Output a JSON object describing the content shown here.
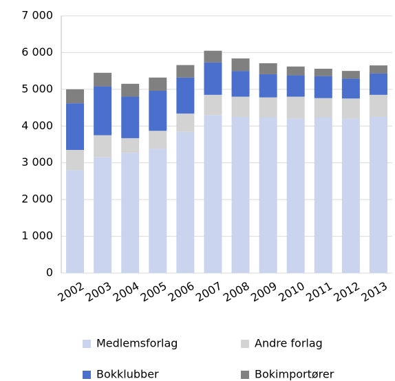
{
  "chart_data": {
    "type": "stacked_bar",
    "categories": [
      "2002",
      "2003",
      "2004",
      "2005",
      "2006",
      "2007",
      "2008",
      "2009",
      "2010",
      "2011",
      "2012",
      "2013"
    ],
    "series": [
      {
        "name": "Medlemsforlag",
        "color": "#cad4ef",
        "values": [
          2800,
          3150,
          3270,
          3380,
          3840,
          4300,
          4250,
          4230,
          4200,
          4230,
          4200,
          4250
        ]
      },
      {
        "name": "Andre forlag",
        "color": "#d3d3d3",
        "values": [
          550,
          600,
          400,
          490,
          500,
          550,
          550,
          550,
          600,
          530,
          550,
          600
        ]
      },
      {
        "name": "Bokklubber",
        "color": "#4a6fcc",
        "values": [
          1270,
          1330,
          1130,
          1090,
          980,
          880,
          700,
          630,
          580,
          600,
          540,
          580
        ]
      },
      {
        "name": "Bokimportører",
        "color": "#808080",
        "values": [
          380,
          370,
          350,
          360,
          340,
          320,
          340,
          300,
          240,
          200,
          210,
          220
        ]
      }
    ],
    "ylim": [
      0,
      7000
    ],
    "yticks": [
      0,
      {
        "value": 1000,
        "label": "1 000"
      },
      {
        "value": 2000,
        "label": "2 000"
      },
      {
        "value": 3000,
        "label": "3 000"
      },
      {
        "value": 4000,
        "label": "4 000"
      },
      {
        "value": 5000,
        "label": "5 000"
      },
      {
        "value": 6000,
        "label": "6 000"
      },
      {
        "value": 7000,
        "label": "7 000"
      }
    ],
    "grid": true
  }
}
